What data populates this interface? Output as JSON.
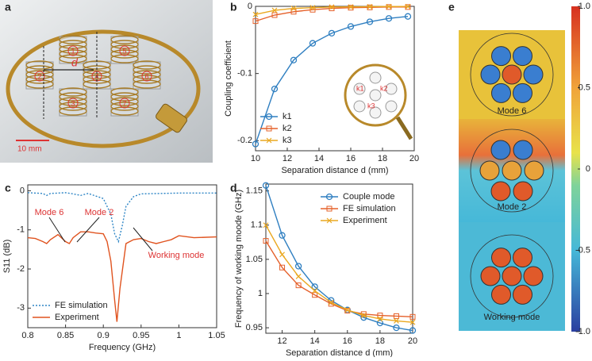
{
  "panel_labels": [
    "a",
    "b",
    "c",
    "d",
    "e"
  ],
  "panel_a": {
    "distance_label": "d",
    "coil_labels": [
      "1",
      "2",
      "3",
      "4",
      "5",
      "6",
      "7"
    ],
    "scale_bar": "10 mm"
  },
  "panel_e": {
    "mode_labels": [
      "Mode 6",
      "Mode 2",
      "Working mode"
    ]
  },
  "chart_data": [
    {
      "type": "line",
      "xlabel": "Separation distance d (mm)",
      "ylabel": "Coupling coefficient",
      "x": [
        10,
        11.2,
        12.4,
        13.6,
        14.8,
        16,
        17.2,
        18.4,
        19.6
      ],
      "xlim": [
        10,
        20
      ],
      "xticks": [
        10,
        12,
        14,
        16,
        18,
        20
      ],
      "ylim": [
        -0.215,
        0
      ],
      "yticks": [
        -0.2,
        -0.1,
        0
      ],
      "legend": "lower left",
      "inset_labels": [
        "k1",
        "k2",
        "k3"
      ],
      "series": [
        {
          "name": "k1",
          "color": "#2f7fc1",
          "marker": "circle",
          "values": [
            -0.205,
            -0.123,
            -0.08,
            -0.055,
            -0.04,
            -0.03,
            -0.023,
            -0.018,
            -0.015
          ]
        },
        {
          "name": "k2",
          "color": "#e5602a",
          "marker": "square",
          "values": [
            -0.022,
            -0.013,
            -0.008,
            -0.005,
            -0.003,
            -0.002,
            -0.0015,
            -0.001,
            -0.001
          ]
        },
        {
          "name": "k3",
          "color": "#eaa820",
          "marker": "x",
          "values": [
            -0.012,
            -0.006,
            -0.003,
            -0.002,
            -0.001,
            -0.0008,
            -0.0005,
            -0.0003,
            -0.0002
          ]
        }
      ]
    },
    {
      "type": "line",
      "xlabel": "Frequency (GHz)",
      "ylabel": "S11 (dB)",
      "xlim": [
        0.8,
        1.05
      ],
      "xticks": [
        0.8,
        0.85,
        0.9,
        0.95,
        1,
        1.05
      ],
      "ylim": [
        -3.5,
        0.15
      ],
      "yticks": [
        -3,
        -2,
        -1,
        0
      ],
      "legend": "lower left",
      "annotations": [
        "Mode 6",
        "Mode 2",
        "Working mode"
      ],
      "series": [
        {
          "name": "FE simulation",
          "color": "#2f86c6",
          "style": "dotted",
          "x": [
            0.8,
            0.82,
            0.825,
            0.83,
            0.85,
            0.86,
            0.87,
            0.88,
            0.9,
            0.91,
            0.915,
            0.92,
            0.925,
            0.93,
            0.94,
            0.95,
            1.0,
            1.05
          ],
          "values": [
            -0.05,
            -0.07,
            -0.12,
            -0.07,
            -0.05,
            -0.08,
            -0.12,
            -0.07,
            -0.2,
            -0.6,
            -1.1,
            -1.3,
            -0.9,
            -0.4,
            -0.15,
            -0.08,
            -0.06,
            -0.06
          ]
        },
        {
          "name": "Experiment",
          "color": "#e0531f",
          "style": "solid",
          "x": [
            0.8,
            0.81,
            0.82,
            0.825,
            0.83,
            0.84,
            0.85,
            0.855,
            0.86,
            0.87,
            0.88,
            0.89,
            0.9,
            0.905,
            0.91,
            0.915,
            0.918,
            0.922,
            0.93,
            0.94,
            0.95,
            0.96,
            0.97,
            0.98,
            0.99,
            1.0,
            1.02,
            1.05
          ],
          "values": [
            -1.2,
            -1.22,
            -1.3,
            -1.35,
            -1.25,
            -1.12,
            -1.3,
            -1.35,
            -1.2,
            -1.05,
            -1.05,
            -1.08,
            -1.1,
            -1.3,
            -1.8,
            -2.8,
            -3.35,
            -2.5,
            -1.35,
            -1.25,
            -1.22,
            -1.3,
            -1.35,
            -1.3,
            -1.25,
            -1.15,
            -1.2,
            -1.18
          ]
        }
      ]
    },
    {
      "type": "line",
      "xlabel": "Separation distance d (mm)",
      "ylabel": "Frequency of working moode (GHz)",
      "x": [
        11,
        12,
        13,
        14,
        15,
        16,
        17,
        18,
        19,
        20
      ],
      "xlim": [
        11,
        20
      ],
      "xticks": [
        12,
        14,
        16,
        18,
        20
      ],
      "ylim": [
        0.942,
        1.16
      ],
      "yticks": [
        0.95,
        1,
        1.05,
        1.1,
        1.15
      ],
      "legend": "upper right",
      "series": [
        {
          "name": "Couple mode",
          "color": "#2f7fc1",
          "marker": "circle",
          "values": [
            1.158,
            1.085,
            1.04,
            1.01,
            0.99,
            0.976,
            0.965,
            0.957,
            0.95,
            0.946
          ]
        },
        {
          "name": "FE simulation",
          "color": "#e5602a",
          "marker": "square",
          "values": [
            1.077,
            1.038,
            1.012,
            0.998,
            0.985,
            0.975,
            0.97,
            0.968,
            0.967,
            0.966
          ]
        },
        {
          "name": "Experiment",
          "color": "#eaa820",
          "marker": "x",
          "values": [
            1.1,
            1.057,
            1.025,
            1.004,
            0.987,
            0.976,
            0.968,
            0.963,
            0.96,
            0.958
          ]
        }
      ]
    },
    {
      "type": "colorbar",
      "ylim": [
        -1,
        1
      ],
      "yticks": [
        {
          "value": 1,
          "label": "1.0"
        },
        {
          "value": 0.5,
          "label": "0.5"
        },
        0,
        {
          "value": -0.5,
          "label": "-0.5"
        },
        {
          "value": -1,
          "label": "-1.0"
        }
      ]
    }
  ]
}
